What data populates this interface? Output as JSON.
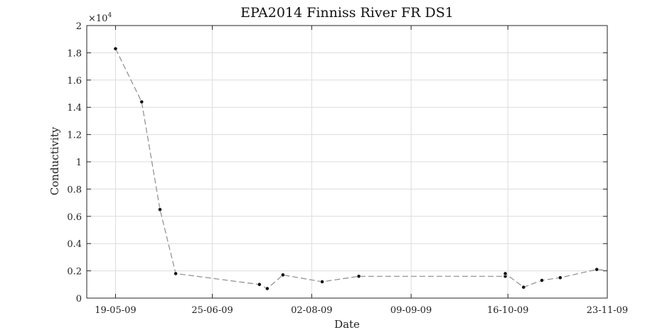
{
  "chart_data": {
    "type": "line",
    "title": "EPA2014 Finniss River FR DS1",
    "xlabel": "Date",
    "ylabel": "Conductivity",
    "y_exponent_label": "×10",
    "y_exponent": "4",
    "ylim": [
      0,
      20000
    ],
    "y_ticks": [
      0,
      2000,
      4000,
      6000,
      8000,
      10000,
      12000,
      14000,
      16000,
      18000,
      20000
    ],
    "y_tick_labels": [
      "0",
      "0.2",
      "0.4",
      "0.6",
      "0.8",
      "1",
      "1.2",
      "1.4",
      "1.6",
      "1.8",
      "2"
    ],
    "xlim": [
      "2009-05-08",
      "2009-11-23"
    ],
    "x_ticks": [
      "2009-05-19",
      "2009-06-25",
      "2009-08-02",
      "2009-09-09",
      "2009-10-16",
      "2009-11-23"
    ],
    "x_tick_labels": [
      "19-05-09",
      "25-06-09",
      "02-08-09",
      "09-09-09",
      "16-10-09",
      "23-11-09"
    ],
    "grid": true,
    "line_style": "dashed",
    "line_color": "#8c8c8c",
    "marker_color": "#111111",
    "series": [
      {
        "x": [
          "2009-05-19",
          "2009-05-29",
          "2009-06-05",
          "2009-06-11",
          "2009-07-13",
          "2009-07-16",
          "2009-07-22",
          "2009-08-06",
          "2009-08-20",
          "2009-10-15",
          "2009-10-15",
          "2009-10-22",
          "2009-10-29",
          "2009-11-05",
          "2009-11-19",
          "2009-11-26"
        ],
        "y": [
          18300,
          14400,
          6500,
          1800,
          1000,
          700,
          1700,
          1200,
          1600,
          1600,
          1800,
          800,
          1300,
          1500,
          2100,
          2000
        ]
      }
    ]
  }
}
